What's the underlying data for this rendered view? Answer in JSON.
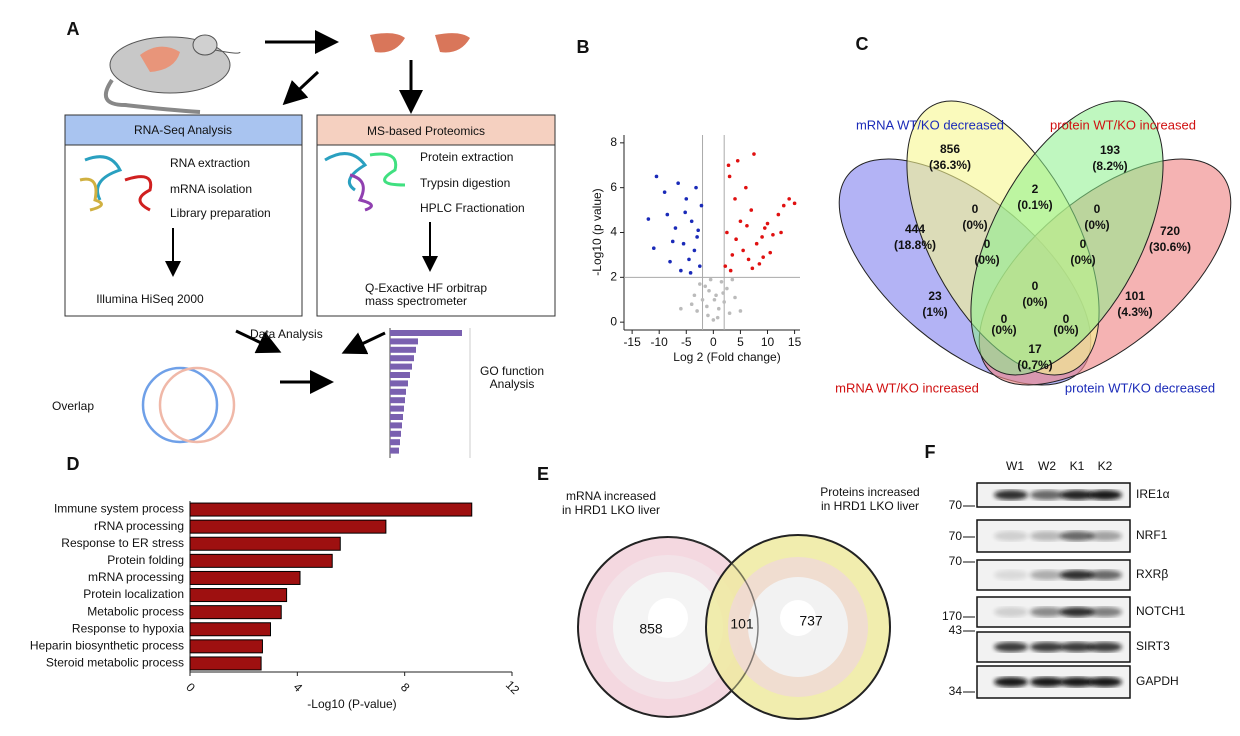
{
  "panel_labels": [
    "A",
    "B",
    "C",
    "D",
    "E",
    "F"
  ],
  "panel_a": {
    "rna_box": {
      "title": "RNA-Seq Analysis",
      "steps": [
        "RNA extraction",
        "mRNA isolation",
        "Library preparation"
      ],
      "output": "Illumina HiSeq 2000"
    },
    "ms_box": {
      "title": "MS-based Proteomics",
      "steps": [
        "Protein extraction",
        "Trypsin digestion",
        "HPLC Fractionation"
      ],
      "output": [
        "Q-Exactive HF orbitrap",
        "mass spectrometer"
      ]
    },
    "data_analysis": "Data Analysis",
    "overlap": "Overlap",
    "go": [
      "GO function",
      "Analysis"
    ]
  },
  "chart_data": [
    {
      "type": "scatter",
      "x_label": "Log 2 (Fold change)",
      "y_label": "-Log10 (p value)",
      "xlim": [
        -16.5,
        16
      ],
      "ylim": [
        -0.35,
        8.35
      ],
      "xticks": [
        -15,
        -10,
        -5,
        0,
        5,
        10,
        15
      ],
      "yticks": [
        0,
        2,
        4,
        6,
        8
      ],
      "vlines": [
        -2,
        2
      ],
      "hlines": [
        2
      ],
      "series": [
        {
          "color": "#bbbbbb",
          "x": [
            -3,
            -2,
            -1.5,
            -1,
            -0.5,
            0,
            0.5,
            1,
            1.5,
            2,
            2.5,
            3,
            -4,
            4,
            -2.5,
            -0.8,
            0.8,
            1.8,
            -1.2,
            0.2,
            -6,
            5,
            3.5,
            -3.5
          ],
          "values": [
            0.5,
            1,
            1.6,
            0.3,
            1.9,
            0.1,
            1.2,
            0.6,
            1.8,
            0.9,
            1.5,
            0.4,
            0.8,
            1.1,
            1.7,
            1.4,
            0.2,
            1.3,
            0.7,
            1.0,
            0.6,
            0.5,
            1.9,
            1.2
          ]
        },
        {
          "color": "#1a2ab8",
          "x": [
            -10.5,
            -9,
            -8.5,
            -7,
            -6.5,
            -5.5,
            -5,
            -4.5,
            -4,
            -3.5,
            -3,
            -2.5,
            -2.2,
            -12,
            -11,
            -6,
            -8,
            -3.2,
            -2.8,
            -4.2,
            -7.5,
            -5.2
          ],
          "values": [
            6.5,
            5.8,
            4.8,
            4.2,
            6.2,
            3.5,
            5.5,
            2.8,
            4.5,
            3.2,
            3.8,
            2.5,
            5.2,
            4.6,
            3.3,
            2.3,
            2.7,
            6.0,
            4.1,
            2.2,
            3.6,
            4.9
          ]
        },
        {
          "color": "#e01010",
          "x": [
            2.2,
            2.5,
            3,
            3.5,
            4,
            4.5,
            5,
            5.5,
            6,
            6.5,
            7,
            7.5,
            8,
            8.5,
            9,
            9.5,
            10,
            11,
            12,
            13,
            14,
            15,
            2.8,
            3.2,
            4.2,
            6.2,
            7.2,
            9.2,
            10.5,
            12.5
          ],
          "values": [
            2.5,
            4,
            6.5,
            3,
            5.5,
            7.2,
            4.5,
            3.2,
            6,
            2.8,
            5,
            7.5,
            3.5,
            2.6,
            3.8,
            4.2,
            4.4,
            3.9,
            4.8,
            5.2,
            5.5,
            5.3,
            7,
            2.3,
            3.7,
            4.3,
            2.4,
            2.9,
            3.1,
            4.0
          ]
        }
      ]
    },
    {
      "type": "hbar",
      "x_label": "-Log10 (P-value)",
      "categories": [
        "Immune system process",
        "rRNA processing",
        "Response to ER stress",
        "Protein folding",
        "mRNA processing",
        "Protein localization",
        "Metabolic process",
        "Response to hypoxia",
        "Heparin biosynthetic process",
        "Steroid metabolic process"
      ],
      "values": [
        10.5,
        7.3,
        5.6,
        5.3,
        4.1,
        3.6,
        3.4,
        3.0,
        2.7,
        2.65
      ],
      "color": "#9e1010",
      "xlim": [
        0,
        12
      ],
      "xticks": [
        0,
        4,
        8,
        12
      ]
    }
  ],
  "panel_c": {
    "labels": [
      "mRNA WT/KO decreased",
      "protein WT/KO increased",
      "mRNA WT/KO increased",
      "protein WT/KO decreased"
    ],
    "regions": [
      {
        "count": "856",
        "percent": "(36.3%)"
      },
      {
        "count": "193",
        "percent": "(8.2%)"
      },
      {
        "count": "444",
        "percent": "(18.8%)"
      },
      {
        "count": "720",
        "percent": "(30.6%)"
      },
      {
        "count": "0",
        "percent": "(0%)"
      },
      {
        "count": "2",
        "percent": "(0.1%)"
      },
      {
        "count": "0",
        "percent": "(0%)"
      },
      {
        "count": "0",
        "percent": "(0%)"
      },
      {
        "count": "0",
        "percent": "(0%)"
      },
      {
        "count": "23",
        "percent": "(1%)"
      },
      {
        "count": "0",
        "percent": "(0%)"
      },
      {
        "count": "101",
        "percent": "(4.3%)"
      },
      {
        "count": "0",
        "percent": "(0%)"
      },
      {
        "count": "0",
        "percent": "(0%)"
      },
      {
        "count": "17",
        "percent": "(0.7%)"
      }
    ]
  },
  "panel_e": {
    "left_label": [
      "mRNA  increased",
      "in HRD1 LKO liver"
    ],
    "right_label": [
      "Proteins increased",
      "in HRD1 LKO liver"
    ],
    "counts": [
      "858",
      "101",
      "737"
    ]
  },
  "panel_f": {
    "lanes": [
      "W1",
      "W2",
      "K1",
      "K2"
    ],
    "proteins": [
      "IRE1α",
      "NRF1",
      "RXRβ",
      "NOTCH1",
      "SIRT3",
      "GAPDH"
    ],
    "markers": [
      "70",
      "70",
      "70",
      "170",
      "43",
      "34"
    ]
  }
}
